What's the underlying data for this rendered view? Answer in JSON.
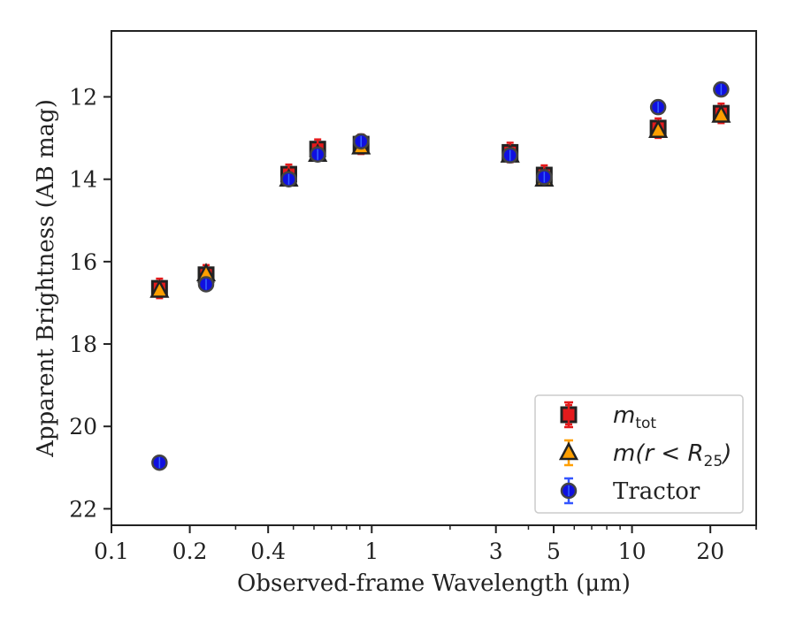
{
  "chart_data": {
    "type": "scatter",
    "xscale": "log",
    "xlim": [
      0.1,
      30
    ],
    "ylim": [
      22.4,
      10.4
    ],
    "y_inverted": true,
    "xlabel": "Observed-frame Wavelength (μm)",
    "ylabel": "Apparent Brightness (AB mag)",
    "xticks": [
      {
        "value": 0.1,
        "label": "0.1"
      },
      {
        "value": 0.2,
        "label": "0.2"
      },
      {
        "value": 0.4,
        "label": "0.4"
      },
      {
        "value": 1,
        "label": "1"
      },
      {
        "value": 3,
        "label": "3"
      },
      {
        "value": 5,
        "label": "5"
      },
      {
        "value": 10,
        "label": "10"
      },
      {
        "value": 20,
        "label": "20"
      }
    ],
    "yticks": [
      {
        "value": 12,
        "label": "12"
      },
      {
        "value": 14,
        "label": "14"
      },
      {
        "value": 16,
        "label": "16"
      },
      {
        "value": 18,
        "label": "18"
      },
      {
        "value": 20,
        "label": "20"
      },
      {
        "value": 22,
        "label": "22"
      }
    ],
    "series": [
      {
        "name": "m_tot",
        "legend_main": "m",
        "legend_sub": "tot",
        "marker": "square",
        "color": "#e41a1c",
        "edge": "#222222",
        "x": [
          0.153,
          0.231,
          0.48,
          0.62,
          0.91,
          3.4,
          4.6,
          12.6,
          22.0
        ],
        "values": [
          16.65,
          16.32,
          13.88,
          13.27,
          13.15,
          13.35,
          13.9,
          12.76,
          12.4
        ]
      },
      {
        "name": "m(r < R_25)",
        "legend_main": "m(r < R",
        "legend_sub": "25",
        "legend_close": ")",
        "marker": "triangle",
        "color": "#ff9f00",
        "edge": "#222222",
        "x": [
          0.153,
          0.231,
          0.48,
          0.62,
          0.91,
          3.4,
          4.6,
          12.6,
          22.0
        ],
        "values": [
          16.7,
          16.3,
          14.0,
          13.4,
          13.22,
          13.42,
          14.0,
          12.82,
          12.45
        ]
      },
      {
        "name": "Tractor",
        "legend_main": "Tractor",
        "marker": "circle",
        "color": "#1010e0",
        "edge": "#444444",
        "x": [
          0.153,
          0.231,
          0.48,
          0.62,
          0.91,
          3.4,
          4.6,
          12.6,
          22.0
        ],
        "values": [
          20.88,
          16.55,
          14.0,
          13.4,
          13.08,
          13.42,
          13.95,
          12.25,
          11.82
        ]
      }
    ],
    "legend_position": "lower-right",
    "grid": false
  }
}
